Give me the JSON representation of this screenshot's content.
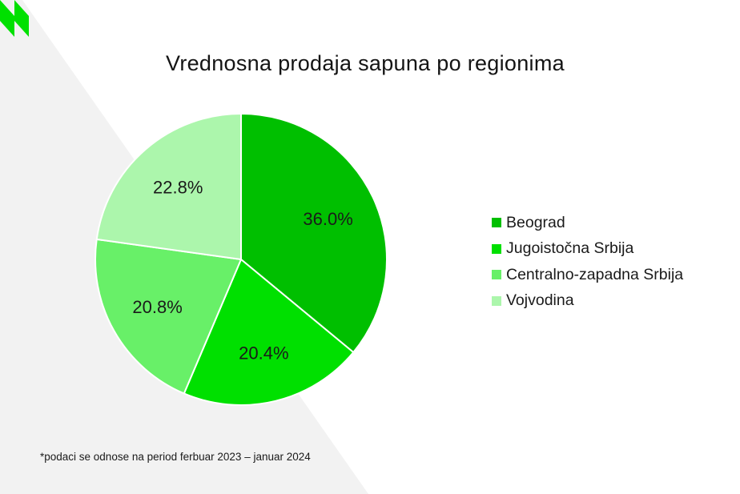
{
  "chart_data": {
    "type": "pie",
    "title": "Vrednosna prodaja sapuna po regionima",
    "categories": [
      "Beograd",
      "Jugoistočna Srbija",
      "Centralno-zapadna Srbija",
      "Vojvodina"
    ],
    "values": [
      36.0,
      20.4,
      20.8,
      22.8
    ],
    "labels": [
      "36.0%",
      "20.4%",
      "20.8%",
      "22.8%"
    ],
    "colors": [
      "#00bf00",
      "#00e000",
      "#68f068",
      "#acf6ac"
    ],
    "legend_position": "right",
    "footnote": "*podaci se odnose na period ferbuar 2023 – januar 2024"
  },
  "colors": {
    "background_shape": "#f2f2f2",
    "logo": "#00e000"
  },
  "icons": {
    "logo": "brand-logo-icon"
  }
}
